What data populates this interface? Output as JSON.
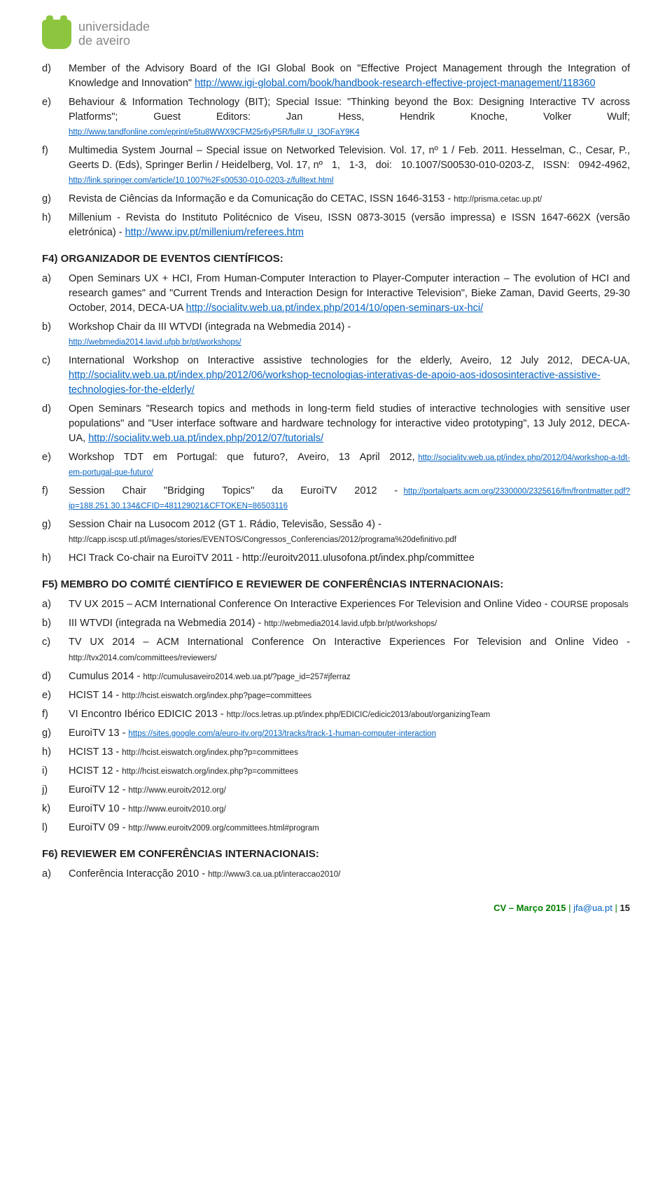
{
  "logo": {
    "line1": "universidade",
    "line2": "de aveiro"
  },
  "sectionD": {
    "items": [
      {
        "marker": "d)",
        "html": "Member of the Advisory Board of the IGI Global Book on \"Effective Project Management through the Integration of Knowledge and Innovation\" <a class='link' href='#'>http://www.igi-global.com/book/handbook-research-effective-project-management/118360</a>"
      },
      {
        "marker": "e)",
        "html": "Behaviour & Information Technology (BIT); Special Issue: \"Thinking beyond the Box: Designing Interactive TV across Platforms\"; Guest Editors: Jan Hess, Hendrik Knoche, Volker Wulf; <a class='link small-link' href='#'>http://www.tandfonline.com/eprint/e5tu8WWX9CFM25r6yP5R/full#.U_I3OFaY9K4</a>"
      },
      {
        "marker": "f)",
        "html": "Multimedia System Journal – Special issue on Networked Television. Vol. 17, nº 1 / Feb. 2011. Hesselman, C., Cesar, P., Geerts D. (Eds), Springer Berlin / Heidelberg, Vol. 17, nº&nbsp;&nbsp;&nbsp;1,&nbsp;&nbsp;&nbsp;1-3,&nbsp;&nbsp;&nbsp;doi:&nbsp;&nbsp;&nbsp;10.1007/S00530-010-0203-Z,&nbsp;&nbsp;&nbsp;ISSN:&nbsp;&nbsp;&nbsp;0942-4962, <a class='link small-link' href='#'>http://link.springer.com/article/10.1007%2Fs00530-010-0203-z/fulltext.html</a>"
      },
      {
        "marker": "g)",
        "html": "Revista de Ciências da Informação e da Comunicação do CETAC, ISSN 1646-3153 - <span class='small-link'>http://prisma.cetac.up.pt/</span>"
      },
      {
        "marker": "h)",
        "html": "Millenium - Revista do Instituto Politécnico de Viseu, ISSN 0873-3015 (versão impressa) e ISSN 1647-662X (versão eletrónica) - <a class='link' href='#'>http://www.ipv.pt/millenium/referees.htm</a>"
      }
    ]
  },
  "f4": {
    "title": "F4) ORGANIZADOR DE EVENTOS CIENTÍFICOS:",
    "items": [
      {
        "marker": "a)",
        "html": "Open Seminars UX + HCI, From Human-Computer Interaction to Player-Computer interaction – The evolution of HCI and research games\" and \"Current Trends and Interaction Design for Interactive Television\", Bieke Zaman, David Geerts, 29-30 October, 2014, DECA-UA <a class='link' href='#'>http://socialitv.web.ua.pt/index.php/2014/10/open-seminars-ux-hci/</a>"
      },
      {
        "marker": "b)",
        "html": "Workshop Chair da III WTVDI (integrada na Webmedia 2014) - <br><a class='link small-link' href='#'>http://webmedia2014.lavid.ufpb.br/pt/workshops/</a>"
      },
      {
        "marker": "c)",
        "html": "International Workshop on Interactive assistive technologies for the elderly, Aveiro, 12 July 2012, DECA-UA, <a class='link' href='#'>http://socialitv.web.ua.pt/index.php/2012/06/workshop-tecnologias-interativas-de-apoio-aos-idososinteractive-assistive-technologies-for-the-elderly/</a>"
      },
      {
        "marker": "d)",
        "html": "Open Seminars \"Research topics and methods in long-term field studies of interactive technologies with sensitive user populations\" and \"User interface software and hardware technology for interactive video prototyping\", 13 July 2012, DECA-UA, <a class='link' href='#'>http://socialitv.web.ua.pt/index.php/2012/07/tutorials/</a>"
      },
      {
        "marker": "e)",
        "html": "Workshop&nbsp;&nbsp;&nbsp;TDT&nbsp;&nbsp;&nbsp;em&nbsp;&nbsp;&nbsp;Portugal:&nbsp;&nbsp;&nbsp;que&nbsp;&nbsp;&nbsp;futuro?,&nbsp;&nbsp;&nbsp;Aveiro,&nbsp;&nbsp;&nbsp;13&nbsp;&nbsp;&nbsp;April&nbsp;&nbsp;&nbsp;2012, <a class='link small-link' href='#'>http://socialitv.web.ua.pt/index.php/2012/04/workshop-a-tdt-em-portugal-que-futuro/</a>"
      },
      {
        "marker": "f)",
        "html": "Session&nbsp;&nbsp;&nbsp;Chair&nbsp;&nbsp;&nbsp;\"Bridging&nbsp;&nbsp;&nbsp;Topics\"&nbsp;&nbsp;&nbsp;da&nbsp;&nbsp;&nbsp;EuroiTV&nbsp;&nbsp;&nbsp;2012&nbsp;&nbsp;&nbsp;- <a class='link small-link' href='#'>http://portalparts.acm.org/2330000/2325616/fm/frontmatter.pdf?ip=188.251.30.134&CFID=481129021&CFTOKEN=86503116</a>"
      },
      {
        "marker": "g)",
        "html": "Session Chair na Lusocom 2012 (GT 1. Rádio, Televisão, Sessão 4) - <br><span class='small-link'>http://capp.iscsp.utl.pt/images/stories/EVENTOS/Congressos_Conferencias/2012/programa%20definitivo.pdf</span>"
      },
      {
        "marker": "h)",
        "html": "HCI Track Co-chair na EuroiTV 2011 - <span>http://euroitv2011.ulusofona.pt/index.php/committee</span>"
      }
    ]
  },
  "f5": {
    "title": "F5) MEMBRO DO COMITÉ CIENTÍFICO E REVIEWER DE CONFERÊNCIAS INTERNACIONAIS:",
    "items": [
      {
        "marker": "a)",
        "html": "TV UX 2015 – ACM International Conference On Interactive Experiences For Television and Online Video - <span style='font-size:12.5px'>COURSE proposals</span>"
      },
      {
        "marker": "b)",
        "html": "III WTVDI (integrada na Webmedia 2014) - <span class='small-link'>http://webmedia2014.lavid.ufpb.br/pt/workshops/</span>"
      },
      {
        "marker": "c)",
        "html": "TV UX 2014 – ACM International Conference On Interactive Experiences For Television and Online Video - <span class='small-link'>http://tvx2014.com/committees/reviewers/</span>"
      },
      {
        "marker": "d)",
        "html": "Cumulus 2014 - <span class='small-link'>http://cumulusaveiro2014.web.ua.pt/?page_id=257#jferraz</span>"
      },
      {
        "marker": "e)",
        "html": "HCIST 14 - <span class='small-link'>http://hcist.eiswatch.org/index.php?page=committees</span>"
      },
      {
        "marker": "f)",
        "html": "VI Encontro Ibérico EDICIC 2013 - <span class='small-link'>http://ocs.letras.up.pt/index.php/EDICIC/edicic2013/about/organizingTeam</span>"
      },
      {
        "marker": "g)",
        "html": "EuroiTV 13 - <a class='link small-link' href='#'>https://sites.google.com/a/euro-itv.org/2013/tracks/track-1-human-computer-interaction</a>"
      },
      {
        "marker": "h)",
        "html": "HCIST 13 - <span class='small-link'>http://hcist.eiswatch.org/index.php?p=committees</span>"
      },
      {
        "marker": "i)",
        "html": "HCIST 12 - <span class='small-link'>http://hcist.eiswatch.org/index.php?p=committees</span>"
      },
      {
        "marker": "j)",
        "html": "EuroiTV 12 - <span class='small-link'>http://www.euroitv2012.org/</span>"
      },
      {
        "marker": "k)",
        "html": "EuroiTV 10 - <span class='small-link'>http://www.euroitv2010.org/</span>"
      },
      {
        "marker": "l)",
        "html": "EuroiTV 09 - <span class='small-link'>http://www.euroitv2009.org/committees.html#program</span>"
      }
    ]
  },
  "f6": {
    "title": "F6) REVIEWER EM CONFERÊNCIAS INTERNACIONAIS:",
    "items": [
      {
        "marker": "a)",
        "html": "Conferência Interacção 2010 - <span class='small-link'>http://www3.ca.ua.pt/interaccao2010/</span>"
      }
    ]
  },
  "footer": {
    "cv": "CV – Março 2015",
    "email": "jfa@ua.pt",
    "page": "15"
  }
}
